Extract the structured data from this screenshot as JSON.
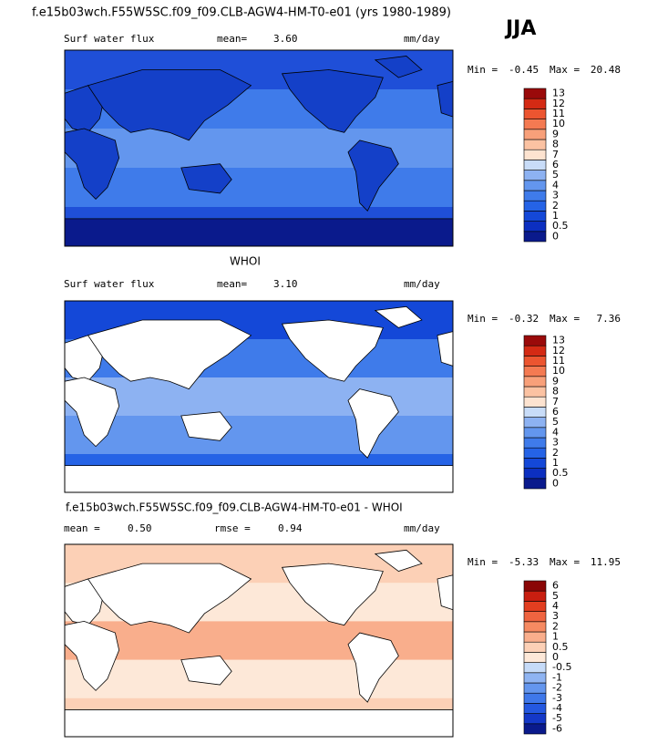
{
  "title": "f.e15b03wch.F55W5SC.f09_f09.CLB-AGW4-HM-T0-e01 (yrs 1980-1989)",
  "season": "JJA",
  "panels": [
    {
      "variable": "Surf water flux",
      "mean_label": "mean=",
      "mean": "3.60",
      "units": "mm/day",
      "min_label": "Min =",
      "min": "-0.45",
      "max_label": "Max =",
      "max": "20.48",
      "colorbar": {
        "labels": [
          "0",
          "0.5",
          "1",
          "2",
          "3",
          "4",
          "5",
          "6",
          "7",
          "8",
          "9",
          "10",
          "11",
          "12",
          "13"
        ],
        "colors": [
          "#0a1a8c",
          "#0c2fc0",
          "#1448d8",
          "#2563e6",
          "#3f7bea",
          "#6396ee",
          "#8db2f2",
          "#c8dcf8",
          "#fde3d0",
          "#fbc2a2",
          "#f8a07a",
          "#f47a52",
          "#ec5530",
          "#d42a14",
          "#9a0a0a"
        ]
      }
    },
    {
      "heading": "WHOI",
      "variable": "Surf water flux",
      "mean_label": "mean=",
      "mean": "3.10",
      "units": "mm/day",
      "min_label": "Min =",
      "min": "-0.32",
      "max_label": "Max =",
      "max": "7.36",
      "colorbar": {
        "labels": [
          "0",
          "0.5",
          "1",
          "2",
          "3",
          "4",
          "5",
          "6",
          "7",
          "8",
          "9",
          "10",
          "11",
          "12",
          "13"
        ],
        "colors": [
          "#0a1a8c",
          "#0c2fc0",
          "#1448d8",
          "#2563e6",
          "#3f7bea",
          "#6396ee",
          "#8db2f2",
          "#c8dcf8",
          "#fde3d0",
          "#fbc2a2",
          "#f8a07a",
          "#f47a52",
          "#ec5530",
          "#d42a14",
          "#9a0a0a"
        ]
      }
    },
    {
      "heading": "f.e15b03wch.F55W5SC.f09_f09.CLB-AGW4-HM-T0-e01 - WHOI",
      "mean_label": "mean =",
      "mean": "0.50",
      "rmse_label": "rmse =",
      "rmse": "0.94",
      "units": "mm/day",
      "min_label": "Min =",
      "min": "-5.33",
      "max_label": "Max =",
      "max": "11.95",
      "colorbar": {
        "labels": [
          "-6",
          "-5",
          "-4",
          "-3",
          "-2",
          "-1",
          "-0.5",
          "0",
          "0.5",
          "1",
          "2",
          "3",
          "4",
          "5",
          "6"
        ],
        "colors": [
          "#0a1a8c",
          "#1438c8",
          "#2458e0",
          "#3f78ea",
          "#6496ee",
          "#8fb4f2",
          "#c6dbf8",
          "#fde8d8",
          "#fcd0b6",
          "#f9ae8c",
          "#f68a62",
          "#ef6440",
          "#e23e20",
          "#c81e10",
          "#8a0606"
        ]
      }
    }
  ]
}
